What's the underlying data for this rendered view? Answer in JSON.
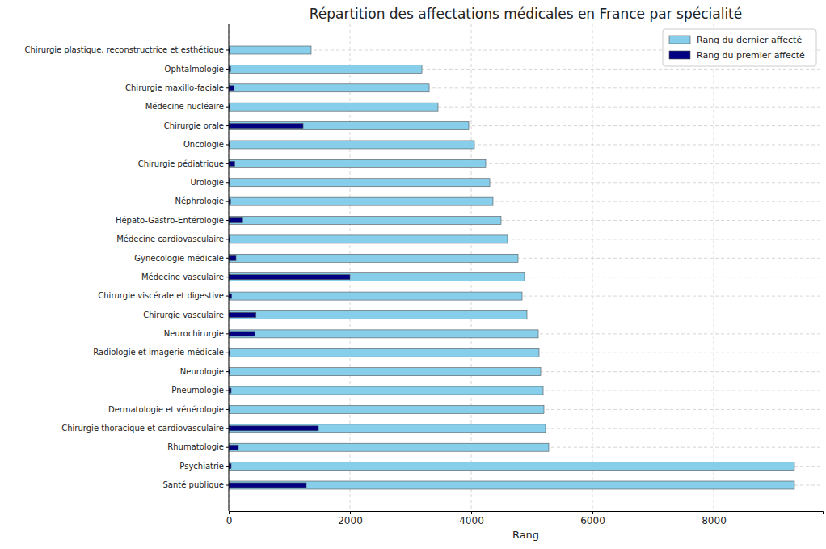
{
  "chart_data": {
    "type": "bar",
    "orientation": "horizontal",
    "title": "Répartition des affectations médicales en France par spécialité",
    "x_label": "Rang",
    "categories": [
      "Chirurgie plastique, reconstructrice et esthétique",
      "Ophtalmologie",
      "Chirurgie maxillo-faciale",
      "Médecine nucléaire",
      "Chirurgie orale",
      "Oncologie",
      "Chirurgie pédiatrique",
      "Urologie",
      "Néphrologie",
      "Hépato-Gastro-Entérologie",
      "Médecine cardiovasculaire",
      "Gynécologie médicale",
      "Médecine vasculaire",
      "Chirurgie viscérale et digestive",
      "Chirurgie vasculaire",
      "Neurochirurgie",
      "Radiologie et imagerie médicale",
      "Neurologie",
      "Pneumologie",
      "Dermatologie et vénérologie",
      "Chirurgie thoracique et cardiovasculaire",
      "Rhumatologie",
      "Psychiatrie",
      "Santé publique"
    ],
    "series": [
      {
        "name": "Rang du dernier affecté",
        "color": "#87ceeb",
        "values": [
          1360,
          3187,
          3307,
          3453,
          3960,
          4053,
          4240,
          4307,
          4360,
          4493,
          4600,
          4773,
          4880,
          4840,
          4920,
          5107,
          5120,
          5147,
          5187,
          5200,
          5227,
          5280,
          9333,
          9333
        ]
      },
      {
        "name": "Rang du premier affecté",
        "color": "#000080",
        "values": [
          20,
          30,
          90,
          20,
          1227,
          10,
          100,
          10,
          30,
          230,
          20,
          120,
          2000,
          50,
          450,
          430,
          20,
          20,
          40,
          10,
          1480,
          160,
          40,
          1280
        ]
      }
    ],
    "xlim": [
      0,
      9800
    ],
    "xticks": [
      0,
      2000,
      4000,
      6000,
      8000
    ],
    "grid": true,
    "legend": "upper right"
  }
}
